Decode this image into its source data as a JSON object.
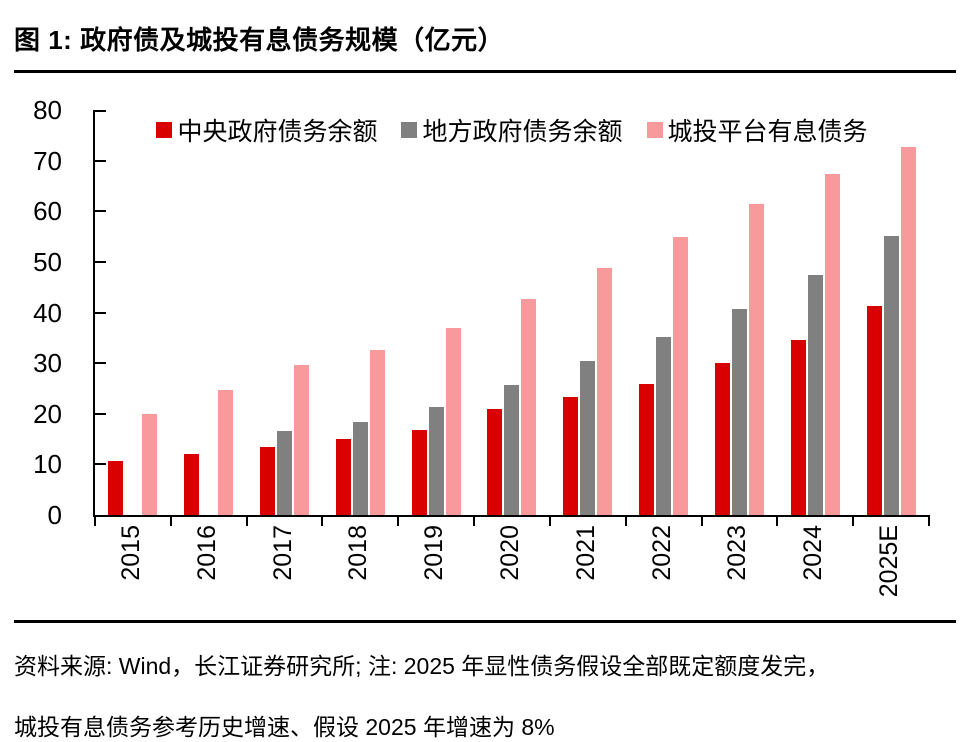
{
  "figure": {
    "title": "图 1: 政府债及城投有息债务规模（亿元）",
    "source_note_line1": "资料来源: Wind，长江证券研究所; 注: 2025 年显性债务假设全部既定额度发完，",
    "source_note_line2": "城投有息债务参考历史增速、假设 2025 年增速为 8%"
  },
  "chart_data": {
    "type": "bar",
    "title": "政府债及城投有息债务规模（亿元）",
    "categories": [
      "2015",
      "2016",
      "2017",
      "2018",
      "2019",
      "2020",
      "2021",
      "2022",
      "2023",
      "2024",
      "2025E"
    ],
    "series": [
      {
        "name": "中央政府债务余额",
        "color": "#d90000",
        "values": [
          10.6,
          12.0,
          13.5,
          15.0,
          16.8,
          20.9,
          23.3,
          25.9,
          30.0,
          34.6,
          41.3
        ]
      },
      {
        "name": "地方政府债务余额",
        "color": "#808080",
        "values": [
          null,
          null,
          16.5,
          18.4,
          21.3,
          25.7,
          30.5,
          35.1,
          40.7,
          47.5,
          55.2
        ]
      },
      {
        "name": "城投平台有息债务",
        "color": "#f8999b",
        "values": [
          20.0,
          24.7,
          29.6,
          32.5,
          37.0,
          42.6,
          48.8,
          54.9,
          61.5,
          67.3,
          72.7
        ]
      }
    ],
    "xlabel": "",
    "ylabel": "",
    "ylim": [
      0,
      80
    ],
    "yticks": [
      0,
      10,
      20,
      30,
      40,
      50,
      60,
      70,
      80
    ],
    "grid": false,
    "legend_position": "top-center-inside"
  }
}
